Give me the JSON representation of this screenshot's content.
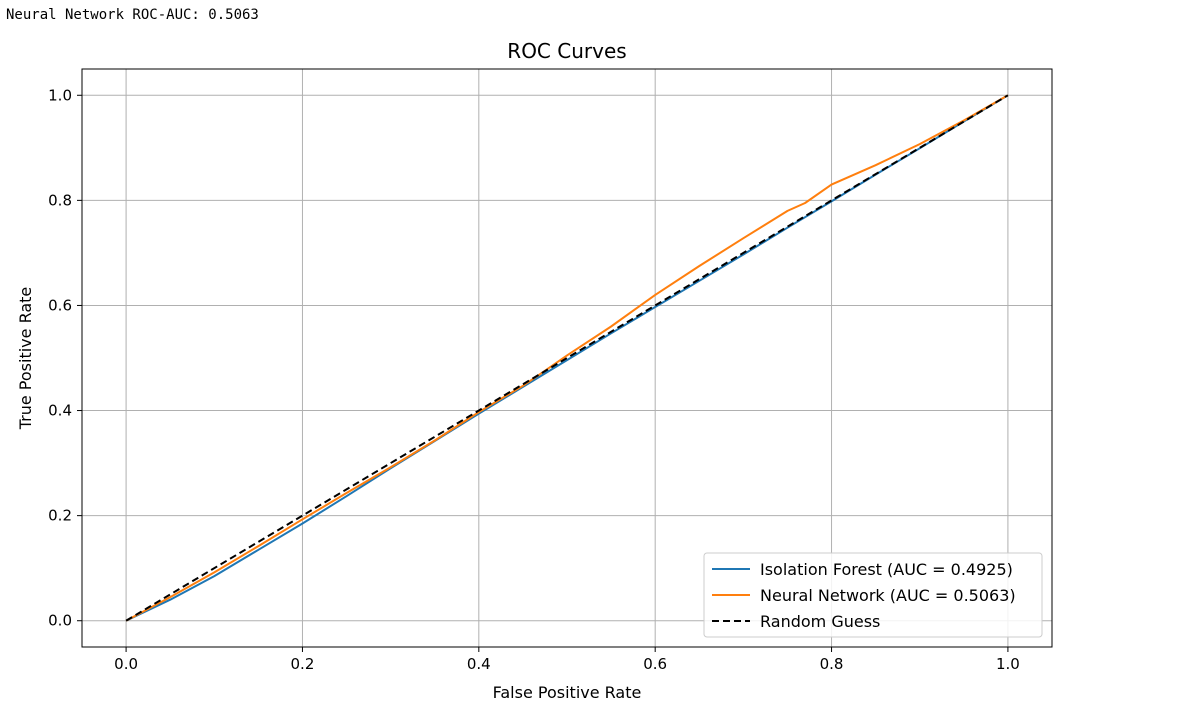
{
  "output_text": "Neural Network ROC-AUC: 0.5063",
  "chart_data": {
    "type": "line",
    "title": "ROC Curves",
    "xlabel": "False Positive Rate",
    "ylabel": "True Positive Rate",
    "xlim": [
      -0.05,
      1.05
    ],
    "ylim": [
      -0.05,
      1.05
    ],
    "xticks": [
      "0.0",
      "0.2",
      "0.4",
      "0.6",
      "0.8",
      "1.0"
    ],
    "yticks": [
      "0.0",
      "0.2",
      "0.4",
      "0.6",
      "0.8",
      "1.0"
    ],
    "grid": true,
    "legend_position": "lower-right",
    "series": [
      {
        "name": "Isolation Forest (AUC = 0.4925)",
        "color": "#1f77b4",
        "style": "solid",
        "x": [
          0.0,
          0.05,
          0.1,
          0.15,
          0.2,
          0.25,
          0.3,
          0.35,
          0.4,
          0.45,
          0.5,
          0.55,
          0.6,
          0.65,
          0.7,
          0.75,
          0.8,
          0.85,
          0.9,
          0.95,
          1.0
        ],
        "y": [
          0.0,
          0.04,
          0.085,
          0.135,
          0.185,
          0.237,
          0.29,
          0.342,
          0.394,
          0.445,
          0.496,
          0.547,
          0.597,
          0.647,
          0.697,
          0.748,
          0.798,
          0.849,
          0.899,
          0.95,
          1.0
        ]
      },
      {
        "name": "Neural Network (AUC = 0.5063)",
        "color": "#ff7f0e",
        "style": "solid",
        "x": [
          0.0,
          0.05,
          0.1,
          0.15,
          0.2,
          0.25,
          0.3,
          0.35,
          0.4,
          0.45,
          0.47,
          0.5,
          0.55,
          0.6,
          0.65,
          0.7,
          0.75,
          0.77,
          0.8,
          0.85,
          0.9,
          0.95,
          1.0
        ],
        "y": [
          0.0,
          0.045,
          0.092,
          0.142,
          0.193,
          0.243,
          0.292,
          0.343,
          0.397,
          0.447,
          0.47,
          0.505,
          0.56,
          0.62,
          0.675,
          0.728,
          0.78,
          0.795,
          0.83,
          0.867,
          0.907,
          0.952,
          1.0
        ]
      },
      {
        "name": "Random Guess",
        "color": "#000000",
        "style": "dashed",
        "x": [
          0.0,
          1.0
        ],
        "y": [
          0.0,
          1.0
        ]
      }
    ]
  }
}
